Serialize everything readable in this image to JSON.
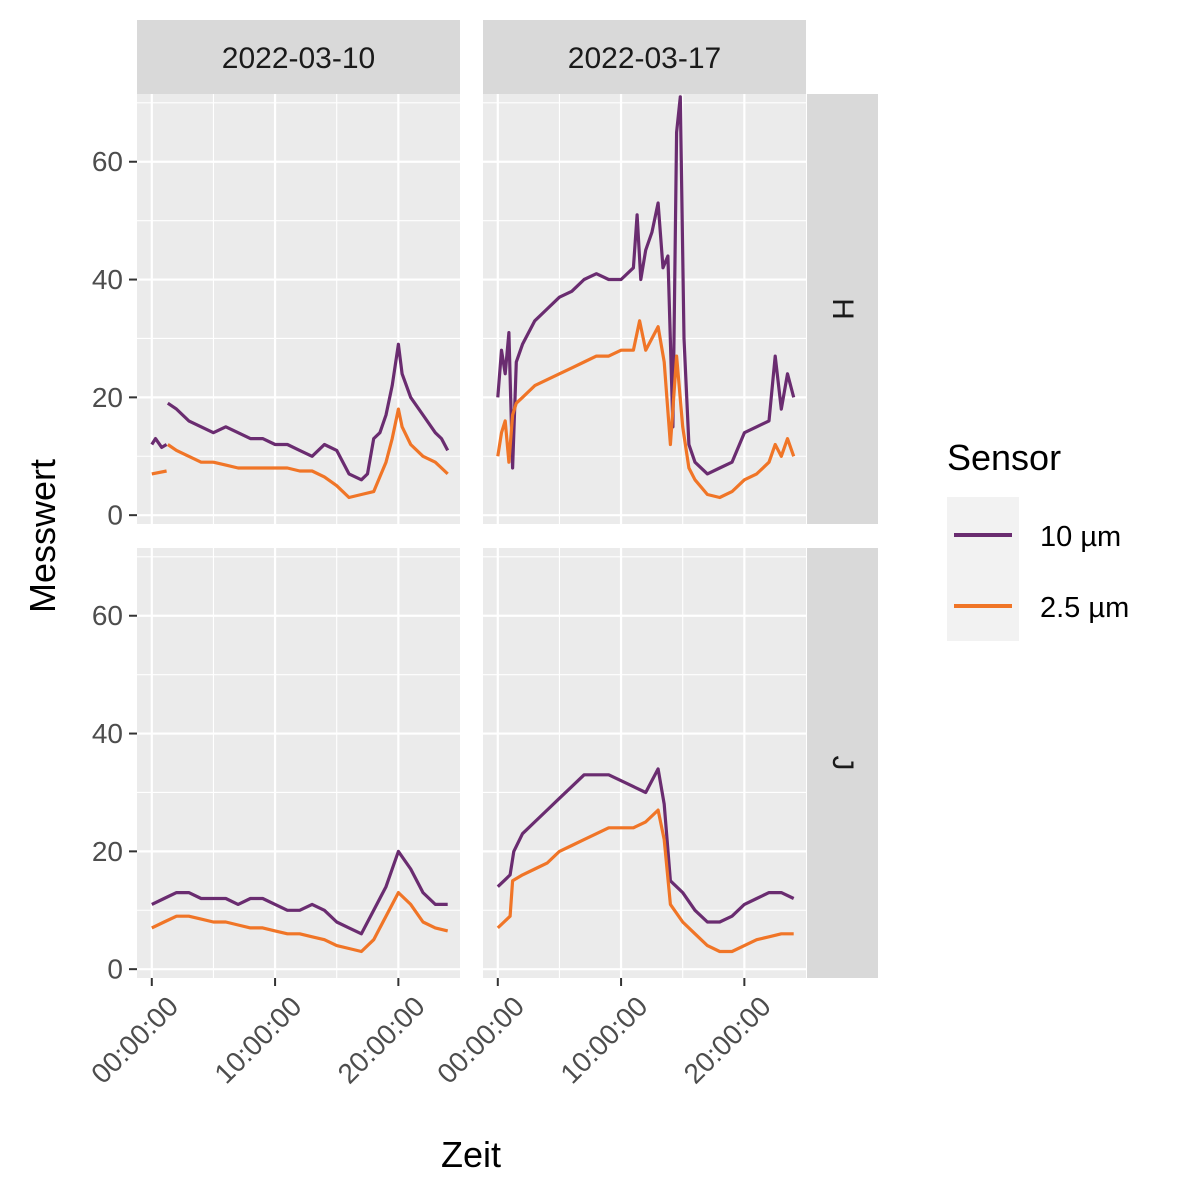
{
  "chart_data": {
    "type": "line",
    "facet_columns": [
      "2022-03-10",
      "2022-03-17"
    ],
    "facet_rows": [
      "H",
      "J"
    ],
    "xlabel": "Zeit",
    "ylabel": "Messwert",
    "x_ticks": [
      "00:00:00",
      "10:00:00",
      "20:00:00"
    ],
    "x_unit": "hours",
    "xlim": [
      -1.2,
      25.0
    ],
    "y_ticks": [
      0,
      20,
      40,
      60
    ],
    "ylim": [
      -1.5,
      71.5
    ],
    "grid": true,
    "legend": {
      "title": "Sensor",
      "position": "right",
      "entries": [
        {
          "name": "10 µm",
          "color": "#6a2c70"
        },
        {
          "name": "2.5 µm",
          "color": "#f07527"
        }
      ]
    },
    "panels": [
      {
        "column": "2022-03-10",
        "row": "H",
        "series": [
          {
            "name": "10 µm",
            "x": [
              0,
              0.3,
              0.8,
              1.2
            ],
            "y": [
              12,
              13,
              11.5,
              12
            ],
            "gap_after": true,
            "x2": [
              1.3,
              2,
              3,
              4,
              5,
              6,
              7,
              8,
              9,
              10,
              11,
              12,
              13,
              14,
              15,
              16,
              17,
              17.5,
              18,
              18.5,
              19,
              19.5,
              20,
              20.3,
              21,
              22,
              23,
              23.5,
              24
            ],
            "y2": [
              19,
              18,
              16,
              15,
              14,
              15,
              14,
              13,
              13,
              12,
              12,
              11,
              10,
              12,
              11,
              7,
              6,
              7,
              13,
              14,
              17,
              22,
              29,
              24,
              20,
              17,
              14,
              13,
              11
            ]
          },
          {
            "name": "2.5 µm",
            "x": [
              0,
              1.2
            ],
            "y": [
              7,
              7.5
            ],
            "gap_after": true,
            "x2": [
              1.3,
              2,
              3,
              4,
              5,
              6,
              7,
              8,
              9,
              10,
              11,
              12,
              13,
              14,
              15,
              16,
              17,
              18,
              19,
              19.5,
              20,
              20.3,
              21,
              22,
              23,
              23.5,
              24
            ],
            "y2": [
              12,
              11,
              10,
              9,
              9,
              8.5,
              8,
              8,
              8,
              8,
              8,
              7.5,
              7.5,
              6.5,
              5,
              3,
              3.5,
              4,
              9,
              13,
              18,
              15,
              12,
              10,
              9,
              8,
              7
            ]
          }
        ]
      },
      {
        "column": "2022-03-17",
        "row": "H",
        "series": [
          {
            "name": "10 µm",
            "x": [
              0,
              0.3,
              0.6,
              0.9,
              1.2,
              1.5,
              2,
              3,
              4,
              5,
              6,
              7,
              8,
              9,
              10,
              11,
              11.3,
              11.6,
              12,
              12.5,
              13,
              13.4,
              13.8,
              14.2,
              14.5,
              14.8,
              15.1,
              15.5,
              16,
              17,
              18,
              19,
              20,
              21,
              22,
              22.5,
              23,
              23.5,
              24
            ],
            "y": [
              20,
              28,
              24,
              31,
              8,
              26,
              29,
              33,
              35,
              37,
              38,
              40,
              41,
              40,
              40,
              42,
              51,
              40,
              45,
              48,
              53,
              42,
              44,
              15,
              65,
              71,
              30,
              12,
              9,
              7,
              8,
              9,
              14,
              15,
              16,
              27,
              18,
              24,
              20
            ]
          },
          {
            "name": "2.5 µm",
            "x": [
              0,
              0.3,
              0.6,
              0.9,
              1.2,
              1.5,
              2,
              3,
              4,
              5,
              6,
              7,
              8,
              9,
              10,
              11,
              11.5,
              12,
              12.5,
              13,
              13.5,
              14,
              14.5,
              15,
              15.5,
              16,
              17,
              18,
              19,
              20,
              21,
              22,
              22.5,
              23,
              23.5,
              24
            ],
            "y": [
              10,
              14,
              16,
              9,
              17,
              19,
              20,
              22,
              23,
              24,
              25,
              26,
              27,
              27,
              28,
              28,
              33,
              28,
              30,
              32,
              26,
              12,
              27,
              15,
              8,
              6,
              3.5,
              3,
              4,
              6,
              7,
              9,
              12,
              10,
              13,
              10
            ]
          }
        ]
      },
      {
        "column": "2022-03-10",
        "row": "J",
        "series": [
          {
            "name": "10 µm",
            "x": [
              0,
              1,
              2,
              3,
              4,
              5,
              6,
              7,
              8,
              9,
              10,
              11,
              12,
              13,
              14,
              15,
              16,
              17,
              18,
              19,
              19.5,
              20,
              21,
              22,
              23,
              24
            ],
            "y": [
              11,
              12,
              13,
              13,
              12,
              12,
              12,
              11,
              12,
              12,
              11,
              10,
              10,
              11,
              10,
              8,
              7,
              6,
              10,
              14,
              17,
              20,
              17,
              13,
              11,
              11
            ]
          },
          {
            "name": "2.5 µm",
            "x": [
              0,
              1,
              2,
              3,
              4,
              5,
              6,
              7,
              8,
              9,
              10,
              11,
              12,
              13,
              14,
              15,
              16,
              17,
              18,
              19,
              20,
              21,
              22,
              23,
              24
            ],
            "y": [
              7,
              8,
              9,
              9,
              8.5,
              8,
              8,
              7.5,
              7,
              7,
              6.5,
              6,
              6,
              5.5,
              5,
              4,
              3.5,
              3,
              5,
              9,
              13,
              11,
              8,
              7,
              6.5
            ]
          }
        ]
      },
      {
        "column": "2022-03-17",
        "row": "J",
        "series": [
          {
            "name": "10 µm",
            "x": [
              0,
              0.5,
              1,
              1.3,
              2,
              3,
              4,
              5,
              6,
              7,
              8,
              9,
              10,
              11,
              12,
              13,
              13.5,
              14,
              15,
              16,
              17,
              18,
              19,
              20,
              21,
              22,
              23,
              24
            ],
            "y": [
              14,
              15,
              16,
              20,
              23,
              25,
              27,
              29,
              31,
              33,
              33,
              33,
              32,
              31,
              30,
              34,
              28,
              15,
              13,
              10,
              8,
              8,
              9,
              11,
              12,
              13,
              13,
              12
            ]
          },
          {
            "name": "2.5 µm",
            "x": [
              0,
              0.5,
              1,
              1.2,
              2,
              3,
              4,
              5,
              6,
              7,
              8,
              9,
              10,
              11,
              12,
              13,
              13.5,
              14,
              15,
              16,
              17,
              18,
              19,
              20,
              21,
              22,
              23,
              24
            ],
            "y": [
              7,
              8,
              9,
              15,
              16,
              17,
              18,
              20,
              21,
              22,
              23,
              24,
              24,
              24,
              25,
              27,
              22,
              11,
              8,
              6,
              4,
              3,
              3,
              4,
              5,
              5.5,
              6,
              6
            ]
          }
        ]
      }
    ]
  }
}
